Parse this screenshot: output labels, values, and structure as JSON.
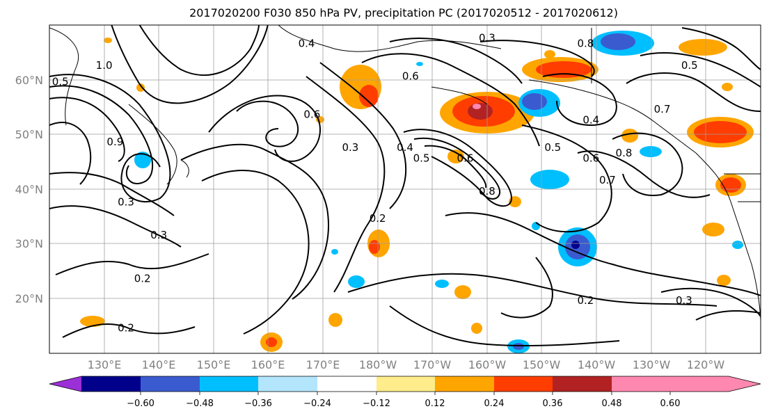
{
  "title": "2017020200 F030 850 hPa PV, precipitation PC (2017020512 - 2017020612)",
  "map": {
    "lat_labels": [
      "60°N",
      "50°N",
      "40°N",
      "30°N",
      "20°N"
    ],
    "lon_labels": [
      "130°E",
      "140°E",
      "150°E",
      "160°E",
      "170°E",
      "180°W",
      "170°W",
      "160°W",
      "150°W",
      "140°W",
      "130°W",
      "120°W"
    ],
    "extent": {
      "lon_min": 120,
      "lon_max": 250,
      "lat_min": 10,
      "lat_max": 70
    }
  },
  "colorbar": {
    "ticks": [
      "−0.60",
      "−0.48",
      "−0.36",
      "−0.24",
      "−0.12",
      "0.12",
      "0.24",
      "0.36",
      "0.48",
      "0.60"
    ],
    "colors": [
      "#9b30d9",
      "#00008b",
      "#3a5bd0",
      "#00bfff",
      "#b3e5fc",
      "#ffffff",
      "#ffec8b",
      "#ffa500",
      "#ff3d00",
      "#b22222",
      "#ff88b0"
    ]
  },
  "contour_labels": [
    {
      "text": "1.0",
      "lon": 130,
      "lat": 62
    },
    {
      "text": "0.5",
      "lon": 122,
      "lat": 59
    },
    {
      "text": "0.9",
      "lon": 132,
      "lat": 48
    },
    {
      "text": "0.3",
      "lon": 134,
      "lat": 37
    },
    {
      "text": "0.3",
      "lon": 140,
      "lat": 31
    },
    {
      "text": "0.2",
      "lon": 137,
      "lat": 23
    },
    {
      "text": "0.2",
      "lon": 134,
      "lat": 14
    },
    {
      "text": "0.4",
      "lon": 167,
      "lat": 66
    },
    {
      "text": "0.6",
      "lon": 168,
      "lat": 53
    },
    {
      "text": "0.3",
      "lon": 175,
      "lat": 47
    },
    {
      "text": "0.2",
      "lon": 180,
      "lat": 34
    },
    {
      "text": "0.6",
      "lon": 186,
      "lat": 60
    },
    {
      "text": "0.4",
      "lon": 185,
      "lat": 47
    },
    {
      "text": "0.5",
      "lon": 188,
      "lat": 45
    },
    {
      "text": "0.6",
      "lon": 196,
      "lat": 45
    },
    {
      "text": "0.8",
      "lon": 200,
      "lat": 39
    },
    {
      "text": "0.3",
      "lon": 200,
      "lat": 67
    },
    {
      "text": "0.8",
      "lon": 218,
      "lat": 66
    },
    {
      "text": "0.4",
      "lon": 219,
      "lat": 52
    },
    {
      "text": "0.5",
      "lon": 212,
      "lat": 47
    },
    {
      "text": "0.6",
      "lon": 219,
      "lat": 45
    },
    {
      "text": "0.7",
      "lon": 222,
      "lat": 41
    },
    {
      "text": "0.8",
      "lon": 225,
      "lat": 46
    },
    {
      "text": "0.7",
      "lon": 232,
      "lat": 54
    },
    {
      "text": "0.5",
      "lon": 237,
      "lat": 62
    },
    {
      "text": "0.2",
      "lon": 218,
      "lat": 19
    },
    {
      "text": "0.3",
      "lon": 236,
      "lat": 19
    }
  ]
}
